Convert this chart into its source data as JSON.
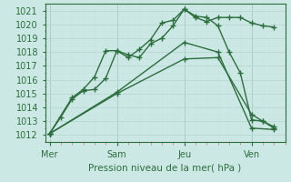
{
  "bg_color": "#cce8e4",
  "plot_bg_color": "#cce8e4",
  "grid_color_major": "#b8d8d4",
  "grid_color_minor": "#c8e4e0",
  "line_color": "#2d6e3e",
  "xlabel": "Pression niveau de la mer( hPa )",
  "xlabel_color": "#2d6e3e",
  "ylabel_color": "#2d6e3e",
  "tick_minor_color": "#d08080",
  "ylim": [
    1011.5,
    1021.5
  ],
  "yticks": [
    1012,
    1013,
    1014,
    1015,
    1016,
    1017,
    1018,
    1019,
    1020,
    1021
  ],
  "xtick_labels": [
    "Mer",
    "Sam",
    "Jeu",
    "Ven"
  ],
  "xtick_positions": [
    0,
    3,
    6,
    9
  ],
  "xlim": [
    -0.2,
    10.5
  ],
  "series": [
    {
      "x": [
        0.0,
        0.5,
        1.0,
        1.5,
        2.0,
        2.5,
        3.0,
        3.5,
        4.0,
        4.5,
        5.0,
        5.5,
        6.0,
        6.5,
        7.0,
        7.5,
        8.0,
        8.5,
        9.0,
        9.5,
        10.0
      ],
      "y": [
        1012.1,
        1013.3,
        1014.6,
        1015.2,
        1015.3,
        1016.1,
        1018.1,
        1017.8,
        1017.6,
        1018.6,
        1019.0,
        1019.9,
        1021.1,
        1020.5,
        1020.2,
        1020.5,
        1020.5,
        1020.5,
        1020.1,
        1019.9,
        1019.8
      ]
    },
    {
      "x": [
        0.0,
        1.0,
        1.5,
        2.0,
        2.5,
        3.0,
        3.5,
        4.0,
        4.5,
        5.0,
        5.5,
        6.0,
        6.5,
        7.0,
        7.5,
        8.0,
        8.5,
        9.0,
        9.5,
        10.0
      ],
      "y": [
        1012.1,
        1014.7,
        1015.3,
        1016.2,
        1018.1,
        1018.1,
        1017.6,
        1018.2,
        1018.9,
        1020.1,
        1020.3,
        1021.1,
        1020.6,
        1020.5,
        1019.9,
        1018.0,
        1016.5,
        1013.1,
        1013.0,
        1012.6
      ]
    },
    {
      "x": [
        0.0,
        3.0,
        6.0,
        7.5,
        9.0,
        10.0
      ],
      "y": [
        1012.1,
        1015.1,
        1018.7,
        1018.0,
        1012.5,
        1012.4
      ]
    },
    {
      "x": [
        0.0,
        3.0,
        6.0,
        7.5,
        9.0,
        9.5,
        10.0
      ],
      "y": [
        1012.1,
        1015.0,
        1017.5,
        1017.6,
        1013.5,
        1013.0,
        1012.5
      ]
    }
  ]
}
